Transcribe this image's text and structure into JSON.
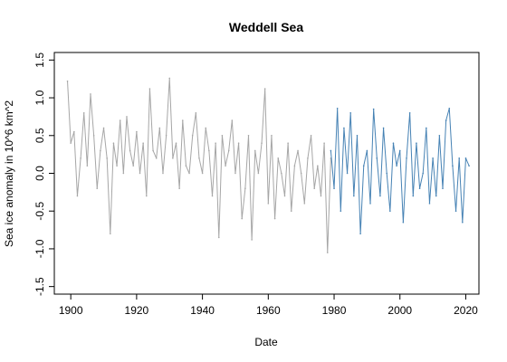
{
  "chart_data": {
    "type": "line",
    "title": "Weddell Sea",
    "xlabel": "Date",
    "ylabel": "Sea ice anomaly in 10^6 km^2",
    "xlim": [
      1895,
      2024
    ],
    "ylim": [
      -1.6,
      1.6
    ],
    "x_ticks": [
      1900,
      1920,
      1940,
      1960,
      1980,
      2000,
      2020
    ],
    "y_ticks": [
      -1.5,
      -1.0,
      -0.5,
      0.0,
      0.5,
      1.0,
      1.5
    ],
    "x_tick_labels": [
      "1900",
      "1920",
      "1940",
      "1960",
      "1980",
      "2000",
      "2020"
    ],
    "y_tick_labels": [
      "-1.5",
      "-1.0",
      "-0.5",
      "0.0",
      "0.5",
      "1.0",
      "1.5"
    ],
    "grid": false,
    "series": [
      {
        "color": "#a6a6a6",
        "x": [
          1899.0,
          1900.0,
          1901.0,
          1902.0,
          1903.0,
          1904.0,
          1905.0,
          1906.0,
          1907.0,
          1908.0,
          1909.0,
          1910.0,
          1911.0,
          1912.0,
          1913.0,
          1914.0,
          1915.0,
          1916.0,
          1917.0,
          1918.0,
          1919.0,
          1920.0,
          1921.0,
          1922.0,
          1923.0,
          1924.0,
          1925.0,
          1926.0,
          1927.0,
          1928.0,
          1929.0,
          1930.0,
          1931.0,
          1932.0,
          1933.0,
          1934.0,
          1935.0,
          1936.0,
          1937.0,
          1938.0,
          1939.0,
          1940.0,
          1941.0,
          1942.0,
          1943.0,
          1944.0,
          1945.0,
          1946.0,
          1947.0,
          1948.0,
          1949.0,
          1950.0,
          1951.0,
          1952.0,
          1953.0,
          1954.0,
          1955.0,
          1956.0,
          1957.0,
          1958.0,
          1959.0,
          1960.0,
          1961.0,
          1962.0,
          1963.0,
          1964.0,
          1965.0,
          1966.0,
          1967.0,
          1968.0,
          1969.0,
          1970.0,
          1971.0,
          1972.0,
          1973.0,
          1974.0,
          1975.0,
          1976.0,
          1977.0,
          1978.0,
          1979.0
        ],
        "values": [
          1.22,
          0.4,
          0.55,
          -0.3,
          0.2,
          0.8,
          0.1,
          1.05,
          0.5,
          -0.2,
          0.3,
          0.6,
          0.2,
          -0.8,
          0.4,
          0.1,
          0.7,
          0.0,
          0.75,
          0.3,
          0.1,
          0.55,
          0.0,
          0.4,
          -0.3,
          1.12,
          0.3,
          0.2,
          0.6,
          0.0,
          0.5,
          1.26,
          0.2,
          0.4,
          -0.2,
          0.7,
          0.1,
          0.0,
          0.5,
          0.8,
          0.2,
          0.0,
          0.6,
          0.3,
          -0.3,
          0.4,
          -0.85,
          0.5,
          0.1,
          0.3,
          0.7,
          0.0,
          0.4,
          -0.6,
          -0.2,
          0.5,
          -0.88,
          0.3,
          0.0,
          0.4,
          1.12,
          -0.4,
          0.5,
          -0.6,
          0.2,
          0.0,
          -0.3,
          0.4,
          -0.5,
          0.1,
          0.3,
          0.0,
          -0.4,
          0.2,
          0.5,
          -0.2,
          0.1,
          -0.3,
          0.4,
          -1.05,
          0.2
        ]
      },
      {
        "color": "#4682b4",
        "x": [
          1979.0,
          1980.0,
          1981.0,
          1982.0,
          1983.0,
          1984.0,
          1985.0,
          1986.0,
          1987.0,
          1988.0,
          1989.0,
          1990.0,
          1991.0,
          1992.0,
          1993.0,
          1994.0,
          1995.0,
          1996.0,
          1997.0,
          1998.0,
          1999.0,
          2000.0,
          2001.0,
          2002.0,
          2003.0,
          2004.0,
          2005.0,
          2006.0,
          2007.0,
          2008.0,
          2009.0,
          2010.0,
          2011.0,
          2012.0,
          2013.0,
          2014.0,
          2015.0,
          2016.0,
          2017.0,
          2018.0,
          2019.0,
          2020.0,
          2021.0
        ],
        "values": [
          0.3,
          -0.2,
          0.86,
          -0.5,
          0.6,
          0.0,
          0.8,
          -0.3,
          0.5,
          -0.8,
          0.1,
          0.3,
          -0.4,
          0.85,
          0.2,
          -0.3,
          0.6,
          0.0,
          -0.5,
          0.4,
          0.1,
          0.3,
          -0.65,
          0.2,
          0.8,
          -0.3,
          0.4,
          -0.2,
          0.0,
          0.6,
          -0.4,
          0.2,
          -0.3,
          0.5,
          -0.2,
          0.7,
          0.86,
          0.1,
          -0.5,
          0.2,
          -0.65,
          0.2,
          0.1
        ]
      }
    ]
  }
}
